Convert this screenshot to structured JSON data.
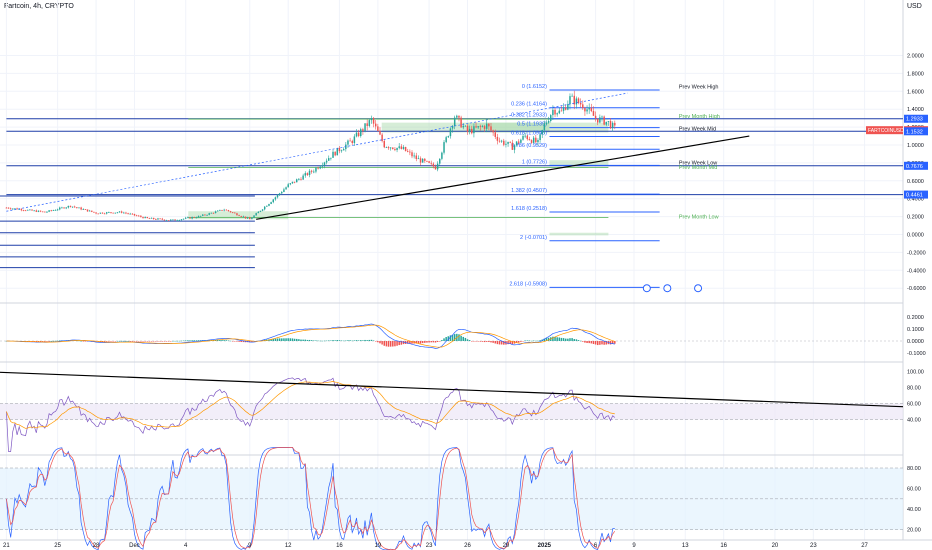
{
  "header": {
    "title": "Fartcoin, 4h, CRYPTO",
    "currency": "USD"
  },
  "colors": {
    "up": "#26a69a",
    "down": "#ef5350",
    "fib": "#2962ff",
    "level": "#1e3fa8",
    "green_level": "#4caf50",
    "zone": "#a5d6a7",
    "trend": "#000000",
    "macd": "#2962ff",
    "signal": "#ff9800",
    "rsi": "#7e57c2",
    "stoch_k": "#2962ff",
    "stoch_d": "#ef5350",
    "band": "#ede7f6",
    "stoch_band": "#e3f2fd",
    "price_badge": "#ef5350",
    "price_axis_badge": "#2962ff"
  },
  "chart_data": [
    {
      "type": "candlestick",
      "title": "Fartcoin, 4h, CRYPTO",
      "ylim": [
        -0.7,
        2.1
      ],
      "y_ticks": [
        "2.0000",
        "1.8000",
        "1.6000",
        "1.4000",
        "1.2000",
        "1.0000",
        "0.8000",
        "0.6000",
        "0.4000",
        "0.2000",
        "0.0000",
        "-0.2000",
        "-0.4000",
        "-0.6000"
      ],
      "y_tick_values": [
        2.0,
        1.8,
        1.6,
        1.4,
        1.2,
        1.0,
        0.8,
        0.6,
        0.4,
        0.2,
        0.0,
        -0.2,
        -0.4,
        -0.6
      ],
      "x_ticks": [
        "21",
        "25",
        "28",
        "Dec",
        "4",
        "9",
        "12",
        "16",
        "19",
        "23",
        "26",
        "29",
        "2025",
        "6",
        "9",
        "13",
        "16",
        "20",
        "23",
        "27"
      ],
      "x_tick_values": [
        0,
        4,
        7,
        10,
        14,
        19,
        22,
        26,
        29,
        33,
        36,
        39,
        42,
        46,
        49,
        53,
        56,
        60,
        63,
        67
      ],
      "x_range": [
        -0.5,
        70
      ],
      "price_path": {
        "days": [
          0,
          3,
          5,
          7,
          9,
          11,
          13,
          15,
          17,
          19,
          20.5,
          22,
          24,
          25.5,
          27,
          28.5,
          29.5,
          31,
          32,
          33.5,
          35,
          36,
          37.5,
          38.5,
          39.5,
          40.5,
          41.5,
          42,
          42.7,
          43.3,
          44,
          45,
          46,
          47,
          47.6
        ],
        "prices": [
          0.3,
          0.25,
          0.32,
          0.24,
          0.25,
          0.18,
          0.16,
          0.2,
          0.28,
          0.17,
          0.35,
          0.55,
          0.72,
          0.9,
          1.05,
          1.28,
          1.0,
          0.95,
          0.85,
          0.75,
          1.32,
          1.15,
          1.22,
          1.05,
          0.98,
          1.1,
          1.02,
          1.22,
          1.4,
          1.36,
          1.52,
          1.45,
          1.3,
          1.25,
          1.17
        ]
      },
      "current_price": "1.1657",
      "fib_levels": [
        {
          "label": "0 (1.6152)",
          "value": 1.6152,
          "name": "Prev Week High"
        },
        {
          "label": "0.236 (1.4164)",
          "value": 1.4164,
          "name": ""
        },
        {
          "label": "0.382 (1.2933)",
          "value": 1.2933,
          "name": "Prev Month High"
        },
        {
          "label": "0.5 (1.1939)",
          "value": 1.1939,
          "name": ""
        },
        {
          "label": "0.618 (1.0945)",
          "value": 1.0945,
          "name": "Prev Week Mid"
        },
        {
          "label": "0.786 (0.9529)",
          "value": 0.9529,
          "name": ""
        },
        {
          "label": "1 (0.7726)",
          "value": 0.7726,
          "name": "Prev Week Low"
        },
        {
          "label": "1.382 (0.4507)",
          "value": 0.4507,
          "name": ""
        },
        {
          "label": "1.618 (0.2518)",
          "value": 0.2518,
          "name": ""
        },
        {
          "label": "2 (-0.0701)",
          "value": -0.0701,
          "name": ""
        },
        {
          "label": "2.618 (-0.5908)",
          "value": -0.5908,
          "name": ""
        }
      ],
      "level_labels": {
        "prev_week_high": "Prev Week High",
        "prev_month_high": "Prev Month High",
        "prev_week_mid": "Prev Week Mid",
        "prev_week_low": "Prev Week Low",
        "prev_month_mid": "Prev Month Mid",
        "prev_month_low": "Prev Month Low"
      },
      "axis_badges": [
        "1.2933",
        "1.1657",
        "1.1532",
        "0.7676",
        "0.4461"
      ],
      "price_badge_label": "FARTCOINUSD"
    },
    {
      "type": "line",
      "name": "MACD",
      "y_ticks": [
        "0.2000",
        "0.1000",
        "0.0000",
        "-0.1000"
      ],
      "y_tick_values": [
        0.2,
        0.1,
        0.0,
        -0.1
      ]
    },
    {
      "type": "line",
      "name": "RSI",
      "y_ticks": [
        "100.00",
        "80.00",
        "60.00",
        "40.00"
      ],
      "y_tick_values": [
        100,
        80,
        60,
        40
      ]
    },
    {
      "type": "line",
      "name": "Stochastic RSI",
      "y_ticks": [
        "80.00",
        "60.00",
        "40.00",
        "20.00"
      ],
      "y_tick_values": [
        80,
        60,
        40,
        20
      ]
    }
  ]
}
